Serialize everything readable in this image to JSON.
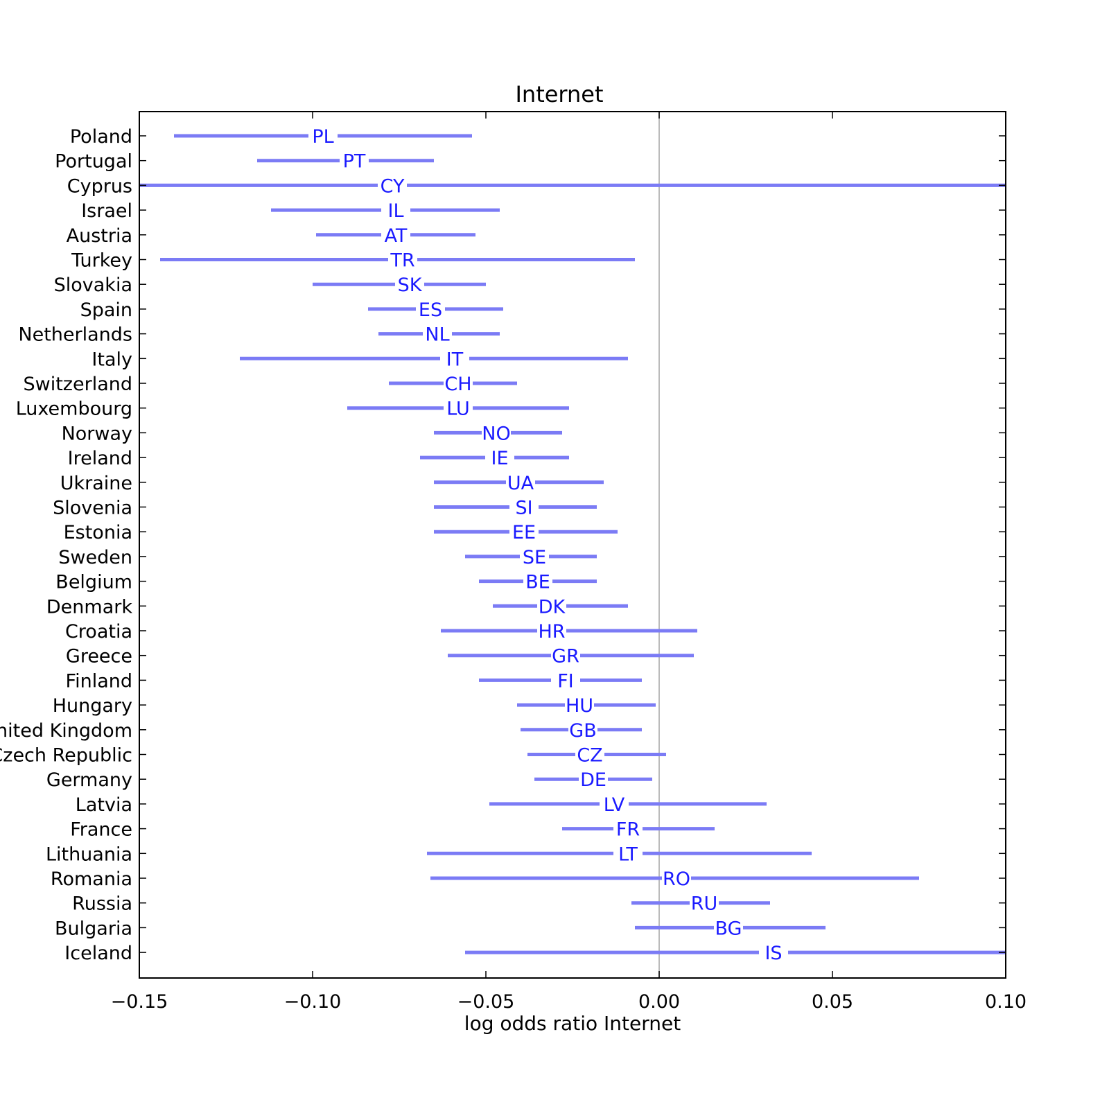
{
  "chart_data": {
    "type": "interval",
    "title": "Internet",
    "xlabel": "log odds ratio Internet",
    "ylabel": "",
    "xlim": [
      -0.15,
      0.1
    ],
    "xticks": [
      -0.15,
      -0.1,
      -0.05,
      0.0,
      0.05,
      0.1
    ],
    "xtick_labels": [
      "−0.15",
      "−0.10",
      "−0.05",
      "0.00",
      "0.05",
      "0.10"
    ],
    "reference_line_x": 0.0,
    "grid": false,
    "colors": {
      "interval": "#7b7bf5",
      "code": "#1a1aff",
      "reference": "#bbbbbb"
    },
    "rows": [
      {
        "country": "Poland",
        "code": "PL",
        "low": -0.14,
        "mid": -0.097,
        "high": -0.054
      },
      {
        "country": "Portugal",
        "code": "PT",
        "low": -0.116,
        "mid": -0.088,
        "high": -0.065
      },
      {
        "country": "Cyprus",
        "code": "CY",
        "low": -0.15,
        "mid": -0.077,
        "high": 0.1
      },
      {
        "country": "Israel",
        "code": "IL",
        "low": -0.112,
        "mid": -0.076,
        "high": -0.046
      },
      {
        "country": "Austria",
        "code": "AT",
        "low": -0.099,
        "mid": -0.076,
        "high": -0.053
      },
      {
        "country": "Turkey",
        "code": "TR",
        "low": -0.144,
        "mid": -0.074,
        "high": -0.007
      },
      {
        "country": "Slovakia",
        "code": "SK",
        "low": -0.1,
        "mid": -0.072,
        "high": -0.05
      },
      {
        "country": "Spain",
        "code": "ES",
        "low": -0.084,
        "mid": -0.066,
        "high": -0.045
      },
      {
        "country": "Netherlands",
        "code": "NL",
        "low": -0.081,
        "mid": -0.064,
        "high": -0.046
      },
      {
        "country": "Italy",
        "code": "IT",
        "low": -0.121,
        "mid": -0.059,
        "high": -0.009
      },
      {
        "country": "Switzerland",
        "code": "CH",
        "low": -0.078,
        "mid": -0.058,
        "high": -0.041
      },
      {
        "country": "Luxembourg",
        "code": "LU",
        "low": -0.09,
        "mid": -0.058,
        "high": -0.026
      },
      {
        "country": "Norway",
        "code": "NO",
        "low": -0.065,
        "mid": -0.047,
        "high": -0.028
      },
      {
        "country": "Ireland",
        "code": "IE",
        "low": -0.069,
        "mid": -0.046,
        "high": -0.026
      },
      {
        "country": "Ukraine",
        "code": "UA",
        "low": -0.065,
        "mid": -0.04,
        "high": -0.016
      },
      {
        "country": "Slovenia",
        "code": "SI",
        "low": -0.065,
        "mid": -0.039,
        "high": -0.018
      },
      {
        "country": "Estonia",
        "code": "EE",
        "low": -0.065,
        "mid": -0.039,
        "high": -0.012
      },
      {
        "country": "Sweden",
        "code": "SE",
        "low": -0.056,
        "mid": -0.036,
        "high": -0.018
      },
      {
        "country": "Belgium",
        "code": "BE",
        "low": -0.052,
        "mid": -0.035,
        "high": -0.018
      },
      {
        "country": "Denmark",
        "code": "DK",
        "low": -0.048,
        "mid": -0.031,
        "high": -0.009
      },
      {
        "country": "Croatia",
        "code": "HR",
        "low": -0.063,
        "mid": -0.031,
        "high": 0.011
      },
      {
        "country": "Greece",
        "code": "GR",
        "low": -0.061,
        "mid": -0.027,
        "high": 0.01
      },
      {
        "country": "Finland",
        "code": "FI",
        "low": -0.052,
        "mid": -0.027,
        "high": -0.005
      },
      {
        "country": "Hungary",
        "code": "HU",
        "low": -0.041,
        "mid": -0.023,
        "high": -0.001
      },
      {
        "country": "United Kingdom",
        "code": "GB",
        "low": -0.04,
        "mid": -0.022,
        "high": -0.005
      },
      {
        "country": "Czech Republic",
        "code": "CZ",
        "low": -0.038,
        "mid": -0.02,
        "high": 0.002
      },
      {
        "country": "Germany",
        "code": "DE",
        "low": -0.036,
        "mid": -0.019,
        "high": -0.002
      },
      {
        "country": "Latvia",
        "code": "LV",
        "low": -0.049,
        "mid": -0.013,
        "high": 0.031
      },
      {
        "country": "France",
        "code": "FR",
        "low": -0.028,
        "mid": -0.009,
        "high": 0.016
      },
      {
        "country": "Lithuania",
        "code": "LT",
        "low": -0.067,
        "mid": -0.009,
        "high": 0.044
      },
      {
        "country": "Romania",
        "code": "RO",
        "low": -0.066,
        "mid": 0.005,
        "high": 0.075
      },
      {
        "country": "Russia",
        "code": "RU",
        "low": -0.008,
        "mid": 0.013,
        "high": 0.032
      },
      {
        "country": "Bulgaria",
        "code": "BG",
        "low": -0.007,
        "mid": 0.02,
        "high": 0.048
      },
      {
        "country": "Iceland",
        "code": "IS",
        "low": -0.056,
        "mid": 0.033,
        "high": 0.1
      }
    ]
  }
}
